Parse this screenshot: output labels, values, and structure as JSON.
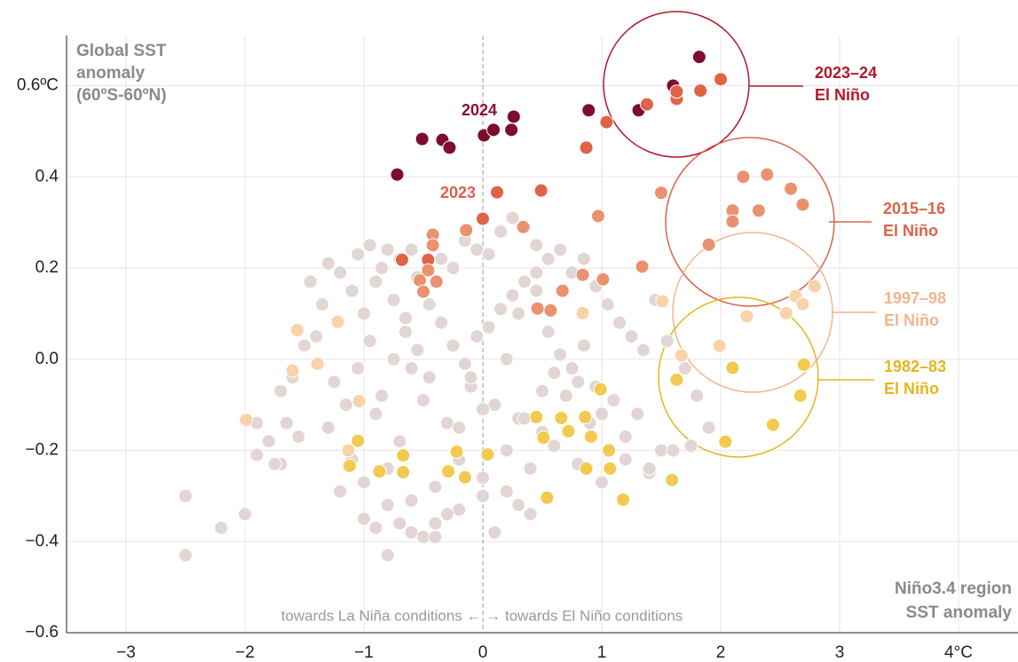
{
  "chart_data": {
    "type": "scatter",
    "y_label": [
      "Global SST",
      "anomaly",
      "(60ºS-60ºN)"
    ],
    "x_label": [
      "Niño3.4 region",
      "SST anomaly"
    ],
    "note": "towards La Niña conditions ←   → towards El Niño conditions",
    "xlim": [
      -3.5,
      4.5
    ],
    "ylim": [
      -0.6,
      0.71
    ],
    "grid": true,
    "xticks": [
      {
        "value": -3,
        "label": "−3"
      },
      {
        "value": -2,
        "label": "−2"
      },
      {
        "value": -1,
        "label": "−1"
      },
      0,
      1,
      2,
      3,
      {
        "value": 4,
        "label": "4°C"
      }
    ],
    "yticks": [
      {
        "value": -0.6,
        "label": "−0.6"
      },
      {
        "value": -0.4,
        "label": "−0.4"
      },
      {
        "value": -0.2,
        "label": "−0.2"
      },
      {
        "value": 0,
        "label": "0.0"
      },
      0.2,
      0.4,
      {
        "value": 0.6,
        "label": "0.6ºC"
      }
    ],
    "series": [
      {
        "color": "#e2d6d4",
        "x": [
          -2.5,
          -2.5,
          -2.2,
          -2.0,
          -1.9,
          -1.8,
          -1.7,
          -1.65,
          -1.6,
          -1.5,
          -1.45,
          -1.7,
          -1.3,
          -1.35,
          -1.4,
          -1.05,
          -0.95,
          -0.8,
          -0.7,
          -0.6,
          -1.2,
          -1.1,
          -1.0,
          -0.9,
          -0.85,
          -0.75,
          -0.65,
          -0.55,
          -0.45,
          -0.35,
          -0.25,
          -0.15,
          -0.05,
          0.05,
          0.15,
          0.25,
          0.35,
          0.45,
          0.55,
          0.65,
          0.75,
          0.85,
          0.95,
          1.05,
          1.15,
          1.25,
          1.35,
          1.45,
          1.55,
          1.7,
          1.8,
          -1.25,
          -1.15,
          -1.05,
          -0.95,
          -0.85,
          -0.75,
          -0.65,
          -0.55,
          -0.45,
          -0.35,
          -0.25,
          -0.15,
          -0.05,
          0.05,
          0.15,
          0.25,
          0.35,
          0.45,
          0.55,
          0.65,
          0.75,
          0.85,
          0.95,
          1.1,
          1.3,
          1.5,
          -1.3,
          -1.1,
          -0.9,
          -0.7,
          -0.5,
          -0.3,
          -0.1,
          0.1,
          0.3,
          0.5,
          0.7,
          0.9,
          1.2,
          1.4,
          -1.2,
          -1.0,
          -0.8,
          -0.6,
          -0.4,
          -0.2,
          0.0,
          0.2,
          0.4,
          0.6,
          0.8,
          1.0,
          -1.0,
          -0.8,
          -0.6,
          -0.4,
          -0.2,
          0.0,
          0.2,
          0.4,
          -0.8,
          -0.5,
          -0.3,
          0.1,
          0.3,
          -0.7,
          -0.4,
          -0.9,
          -0.1,
          0.2,
          0.5,
          0.35,
          0.0,
          -0.2,
          -0.6,
          0.6,
          0.8,
          1.0,
          1.2,
          0.3,
          0.45,
          1.6,
          1.9,
          1.4,
          1.75,
          -1.9,
          -1.55,
          -1.75
        ],
        "y": [
          -0.3,
          -0.43,
          -0.37,
          -0.34,
          -0.21,
          -0.18,
          -0.23,
          -0.14,
          -0.04,
          0.03,
          0.17,
          -0.07,
          0.21,
          0.12,
          0.05,
          0.23,
          0.25,
          0.24,
          0.22,
          0.24,
          0.19,
          0.15,
          0.1,
          0.17,
          0.2,
          0.13,
          0.09,
          0.18,
          0.12,
          0.22,
          0.2,
          0.26,
          0.24,
          0.23,
          0.28,
          0.31,
          0.29,
          0.25,
          0.22,
          0.24,
          0.19,
          0.22,
          0.16,
          0.12,
          0.08,
          0.05,
          0.02,
          0.13,
          0.04,
          -0.02,
          -0.08,
          -0.05,
          -0.1,
          -0.02,
          0.04,
          -0.08,
          0.0,
          0.06,
          0.02,
          -0.04,
          0.08,
          0.03,
          -0.01,
          0.05,
          0.07,
          0.11,
          0.14,
          0.17,
          0.15,
          0.06,
          0.01,
          -0.02,
          0.03,
          -0.06,
          -0.09,
          -0.12,
          -0.2,
          -0.15,
          -0.22,
          -0.12,
          -0.18,
          -0.09,
          -0.14,
          -0.06,
          -0.1,
          -0.13,
          -0.16,
          -0.08,
          -0.14,
          -0.22,
          -0.25,
          -0.29,
          -0.27,
          -0.24,
          -0.31,
          -0.28,
          -0.22,
          -0.26,
          -0.2,
          -0.24,
          -0.19,
          -0.23,
          -0.27,
          -0.35,
          -0.32,
          -0.38,
          -0.36,
          -0.33,
          -0.3,
          -0.29,
          -0.34,
          -0.43,
          -0.39,
          -0.34,
          -0.38,
          -0.32,
          -0.36,
          -0.39,
          -0.37,
          -0.04,
          0.0,
          -0.07,
          -0.13,
          -0.11,
          -0.15,
          -0.02,
          -0.03,
          -0.05,
          -0.12,
          -0.17,
          0.1,
          0.19,
          -0.2,
          -0.15,
          -0.24,
          -0.19,
          -0.14,
          -0.17,
          -0.23
        ]
      },
      {
        "name": "2024",
        "color": "#7d0c2f",
        "x": [
          -0.72,
          -0.51,
          -0.34,
          -0.28,
          0.01,
          0.09,
          0.26,
          0.24,
          0.89,
          1.31,
          1.6,
          1.82
        ],
        "y": [
          0.405,
          0.483,
          0.481,
          0.464,
          0.491,
          0.503,
          0.532,
          0.503,
          0.546,
          0.546,
          0.6,
          0.663
        ]
      },
      {
        "name": "2023",
        "color": "#df6347",
        "x": [
          0.0,
          0.12,
          0.49,
          0.87,
          1.04,
          1.38,
          1.63,
          1.63,
          1.83,
          2.0,
          -0.68,
          -0.46
        ],
        "y": [
          0.308,
          0.366,
          0.37,
          0.464,
          0.52,
          0.559,
          0.571,
          0.587,
          0.589,
          0.614,
          0.218,
          0.218
        ]
      },
      {
        "color": "#ea9270",
        "x": [
          1.5,
          2.19,
          2.39,
          2.59,
          2.69,
          2.1,
          2.32,
          2.1,
          1.9,
          1.34,
          1.01,
          0.84,
          0.67,
          0.46,
          0.57,
          0.97,
          0.34,
          -0.14,
          -0.42,
          -0.42,
          -0.46,
          -0.53,
          -0.39,
          -0.5
        ],
        "y": [
          0.365,
          0.4,
          0.405,
          0.374,
          0.339,
          0.326,
          0.326,
          0.302,
          0.251,
          0.203,
          0.175,
          0.185,
          0.15,
          0.111,
          0.107,
          0.314,
          0.29,
          0.283,
          0.273,
          0.25,
          0.195,
          0.173,
          0.17,
          0.148
        ]
      },
      {
        "color": "#f8d3a8",
        "x": [
          1.51,
          0.84,
          1.67,
          1.99,
          2.22,
          2.55,
          2.63,
          2.69,
          2.79,
          -1.22,
          -1.56,
          -1.39,
          -1.6,
          -1.99,
          -1.04,
          -1.13
        ],
        "y": [
          0.127,
          0.101,
          0.008,
          0.029,
          0.094,
          0.101,
          0.138,
          0.121,
          0.16,
          0.082,
          0.064,
          -0.01,
          -0.025,
          -0.133,
          -0.092,
          -0.2
        ]
      },
      {
        "color": "#f2ca4f",
        "x": [
          2.1,
          2.7,
          1.63,
          2.67,
          2.44,
          2.04,
          1.59,
          1.18,
          0.54,
          1.06,
          0.86,
          0.99,
          0.91,
          0.72,
          0.66,
          0.45,
          0.51,
          0.04,
          -0.22,
          -0.29,
          -0.15,
          -0.67,
          -0.67,
          -0.87,
          -1.05,
          -1.12,
          1.07,
          0.87
        ],
        "y": [
          -0.019,
          -0.012,
          -0.045,
          -0.08,
          -0.144,
          -0.181,
          -0.265,
          -0.308,
          -0.304,
          -0.2,
          -0.127,
          -0.066,
          -0.17,
          -0.158,
          -0.129,
          -0.127,
          -0.172,
          -0.209,
          -0.203,
          -0.246,
          -0.259,
          -0.211,
          -0.248,
          -0.246,
          -0.179,
          -0.234,
          -0.24,
          -0.24
        ]
      }
    ],
    "point_labels": [
      {
        "text": "2024",
        "color": "#8b0f2e"
      },
      {
        "text": "2023",
        "color": "#d9634a"
      }
    ],
    "annotations": [
      {
        "lines": [
          "2023–24",
          "El Niño"
        ],
        "color": "#b2182b"
      },
      {
        "lines": [
          "2015–16",
          "El Niño"
        ],
        "color": "#d9634a"
      },
      {
        "lines": [
          "1997–98",
          "El Niño"
        ],
        "color": "#f2b48d"
      },
      {
        "lines": [
          "1982–83",
          "El Niño"
        ],
        "color": "#e3b61c"
      }
    ]
  }
}
